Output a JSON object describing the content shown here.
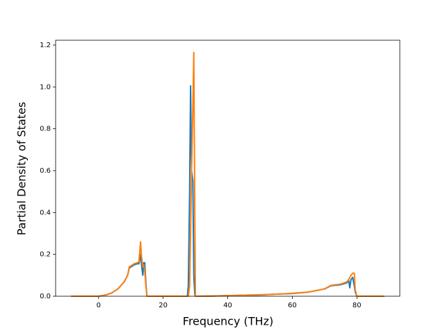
{
  "chart_data": {
    "type": "line",
    "xlabel": "Frequency (THz)",
    "ylabel": "Partial Density of States",
    "x": [
      -8.5,
      0,
      2,
      4,
      6,
      8,
      9,
      9.5,
      10,
      11,
      12,
      12.5,
      13,
      13.3,
      13.7,
      14,
      14.3,
      14.7,
      15,
      27.5,
      27.8,
      28.2,
      28.5,
      28.8,
      29.2,
      29.5,
      29.8,
      30,
      35,
      40,
      45,
      50,
      55,
      60,
      65,
      70,
      72,
      75,
      77,
      77.5,
      77.8,
      78.2,
      78.7,
      79.2,
      79.5,
      80,
      88.5
    ],
    "series": [
      {
        "color": "#1f77b4",
        "values": [
          0,
          0,
          0.005,
          0.015,
          0.035,
          0.07,
          0.1,
          0.135,
          0.14,
          0.15,
          0.155,
          0.155,
          0.2,
          0.15,
          0.1,
          0.16,
          0.16,
          0.05,
          0,
          0,
          0.05,
          0.5,
          1.005,
          0.6,
          0.55,
          0.1,
          0.01,
          0,
          0.001,
          0.003,
          0.005,
          0.006,
          0.01,
          0.013,
          0.02,
          0.035,
          0.05,
          0.055,
          0.065,
          0.075,
          0.04,
          0.08,
          0.09,
          0.05,
          0.02,
          0,
          0
        ]
      },
      {
        "color": "#ff7f0e",
        "values": [
          0,
          0,
          0.005,
          0.015,
          0.035,
          0.07,
          0.1,
          0.14,
          0.145,
          0.155,
          0.16,
          0.165,
          0.26,
          0.19,
          0.14,
          0.15,
          0.12,
          0.04,
          0,
          0,
          0,
          0.05,
          0.3,
          0.6,
          0.9,
          1.165,
          0.4,
          0,
          0.001,
          0.003,
          0.005,
          0.007,
          0.01,
          0.014,
          0.02,
          0.035,
          0.052,
          0.058,
          0.07,
          0.08,
          0.09,
          0.1,
          0.11,
          0.11,
          0.03,
          0,
          0
        ]
      }
    ],
    "xlim": [
      -13.3,
      93.3
    ],
    "ylim": [
      0,
      1.223
    ],
    "xticks": [
      0,
      20,
      40,
      60,
      80
    ],
    "yticks": [
      {
        "value": 0,
        "label": "0.0"
      },
      0.2,
      0.4,
      0.6,
      0.8,
      {
        "value": 1,
        "label": "1.0"
      },
      1.2
    ]
  }
}
